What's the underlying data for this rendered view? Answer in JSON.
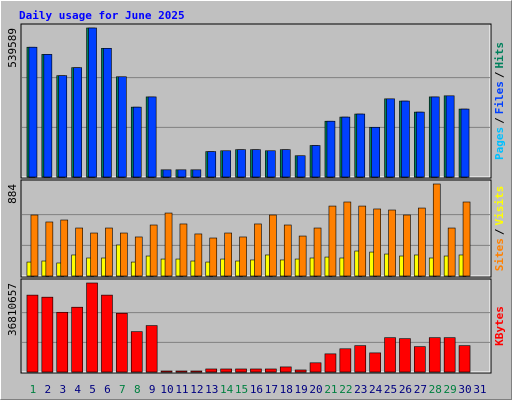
{
  "chart_data": {
    "type": "bar",
    "title": "Daily usage for June 2025",
    "categories": [
      "1",
      "2",
      "3",
      "4",
      "5",
      "6",
      "7",
      "8",
      "9",
      "10",
      "11",
      "12",
      "13",
      "14",
      "15",
      "16",
      "17",
      "18",
      "19",
      "20",
      "21",
      "22",
      "23",
      "24",
      "25",
      "26",
      "27",
      "28",
      "29",
      "30",
      "31"
    ],
    "category_colors": [
      "#008040",
      "#000080",
      "#000080",
      "#000080",
      "#000080",
      "#000080",
      "#008040",
      "#008040",
      "#000080",
      "#000080",
      "#000080",
      "#000080",
      "#000080",
      "#008040",
      "#008040",
      "#000080",
      "#000080",
      "#000080",
      "#000080",
      "#000080",
      "#008040",
      "#008040",
      "#000080",
      "#000080",
      "#000080",
      "#000080",
      "#000080",
      "#008040",
      "#008040",
      "#000080",
      "#000080"
    ],
    "legend_separator": "/",
    "panels": [
      {
        "ylim": [
          0,
          539589
        ],
        "yticks": [
          539589
        ],
        "series": [
          {
            "name": "Pages",
            "color": "#00c0ff",
            "values": [
              null,
              null,
              null,
              null,
              null,
              null,
              null,
              null,
              null,
              null,
              null,
              null,
              null,
              null,
              null,
              null,
              null,
              null,
              null,
              null,
              null,
              null,
              null,
              null,
              null,
              null,
              null,
              null,
              null,
              null,
              null
            ]
          },
          {
            "name": "Files",
            "color": "#0040ff",
            "values": [
              470000,
              444000,
              367000,
              396000,
              539589,
              466000,
              363000,
              253000,
              290000,
              26000,
              26000,
              26000,
              92000,
              95000,
              99000,
              99000,
              95000,
              99000,
              77000,
              114000,
              202000,
              217000,
              228000,
              180000,
              283000,
              275000,
              235000,
              290000,
              294000,
              246000,
              null
            ]
          },
          {
            "name": "Hits",
            "color": "#00805c",
            "values": [
              470000,
              444000,
              367000,
              396000,
              539589,
              466000,
              363000,
              253000,
              290000,
              26000,
              26000,
              26000,
              92000,
              95000,
              99000,
              99000,
              95000,
              99000,
              77000,
              114000,
              202000,
              217000,
              228000,
              180000,
              283000,
              275000,
              235000,
              290000,
              294000,
              246000,
              null
            ]
          }
        ]
      },
      {
        "ylim": [
          0,
          884
        ],
        "yticks": [
          884
        ],
        "series": [
          {
            "name": "Sites",
            "color": "#ff8000",
            "values": [
              586,
              519,
              538,
              461,
              413,
              461,
              413,
              375,
              490,
              605,
              500,
              404,
              365,
              413,
              375,
              500,
              586,
              490,
              384,
              461,
              672,
              711,
              672,
              644,
              634,
              586,
              653,
              884,
              461,
              711,
              null
            ]
          },
          {
            "name": "Visits",
            "color": "#ffff00",
            "values": [
              134,
              144,
              125,
              202,
              173,
              173,
              298,
              134,
              192,
              163,
              163,
              144,
              134,
              163,
              144,
              154,
              202,
              154,
              163,
              173,
              182,
              173,
              240,
              230,
              211,
              192,
              202,
              173,
              192,
              202,
              null
            ]
          }
        ]
      },
      {
        "ylim": [
          0,
          36810657
        ],
        "yticks": [
          36810657
        ],
        "series": [
          {
            "name": "KBytes",
            "color": "#ff0000",
            "values": [
              31800000,
              30950000,
              24700000,
              26800000,
              36810657,
              31800000,
              24300000,
              16700000,
              19200000,
              420000,
              420000,
              420000,
              1250000,
              1250000,
              1250000,
              1250000,
              1250000,
              2100000,
              840000,
              3800000,
              7500000,
              9600000,
              10900000,
              7900000,
              14200000,
              13800000,
              10500000,
              14200000,
              14200000,
              10900000,
              null
            ]
          }
        ]
      }
    ]
  }
}
